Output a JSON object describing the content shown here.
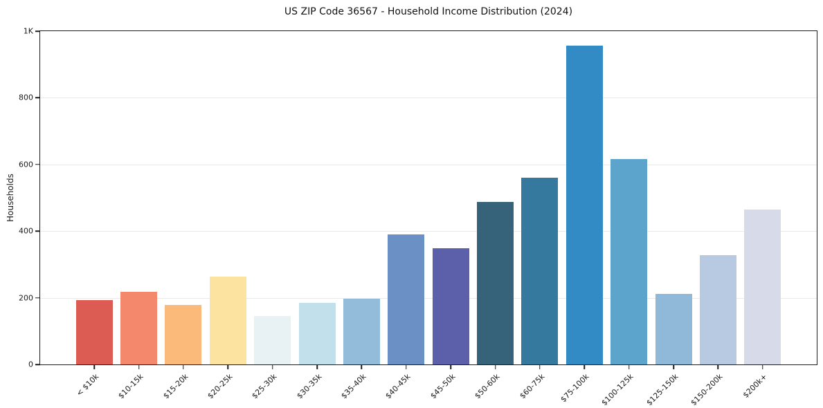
{
  "chart_data": {
    "type": "bar",
    "title": "US ZIP Code 36567 - Household Income Distribution (2024)",
    "xlabel": "",
    "ylabel": "Households",
    "categories": [
      "< $10k",
      "$10-15k",
      "$15-20k",
      "$20-25k",
      "$25-30k",
      "$30-35k",
      "$35-40k",
      "$40-45k",
      "$45-50k",
      "$50-60k",
      "$60-75k",
      "$75-100k",
      "$100-125k",
      "$125-150k",
      "$150-200k",
      "$200k+"
    ],
    "values": [
      192,
      217,
      179,
      263,
      146,
      184,
      198,
      390,
      348,
      488,
      560,
      957,
      617,
      211,
      328,
      464
    ],
    "colors": [
      "#dc5b52",
      "#f4886c",
      "#fbba7a",
      "#fde3a0",
      "#e8f2f5",
      "#c2e0eb",
      "#93bcdb",
      "#6b90c6",
      "#5c60ab",
      "#36627a",
      "#35799f",
      "#338bc6",
      "#5ca4cb",
      "#90b8d8",
      "#b8c9e2",
      "#d7dae8"
    ],
    "ylim": [
      0,
      1000
    ],
    "yticks": [
      {
        "value": 0,
        "label": "0"
      },
      {
        "value": 200,
        "label": "200"
      },
      {
        "value": 400,
        "label": "400"
      },
      {
        "value": 600,
        "label": "600"
      },
      {
        "value": 800,
        "label": "800"
      },
      {
        "value": 1000,
        "label": "1K"
      }
    ],
    "grid": "horizontal",
    "grid_color": "#e9e9ec",
    "legend": "none",
    "bar_gap_color": "#ffffff"
  }
}
